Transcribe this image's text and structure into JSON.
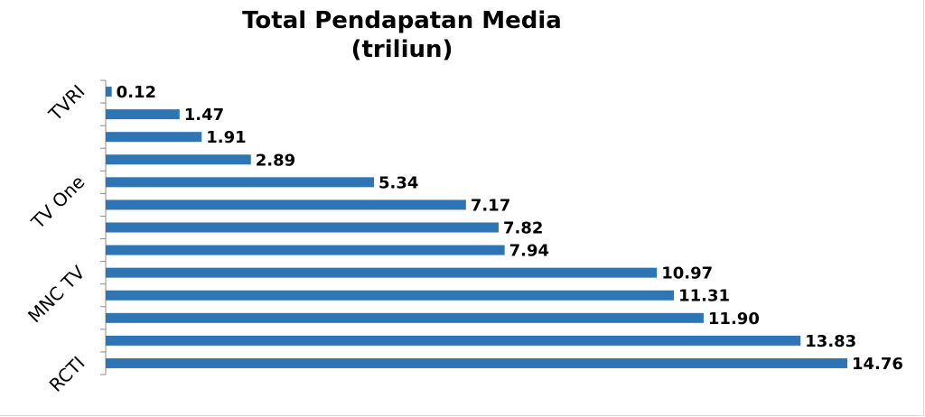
{
  "chart_data": {
    "type": "bar",
    "orientation": "horizontal",
    "title": "Total Pendapatan Media",
    "subtitle": "(triliun)",
    "xlabel": "",
    "ylabel": "",
    "categories": [
      "TVRI",
      "",
      "",
      "",
      "TV One",
      "",
      "",
      "",
      "MNC TV",
      "",
      "",
      "",
      "RCTI"
    ],
    "values": [
      0.12,
      1.47,
      1.91,
      2.89,
      5.34,
      7.17,
      7.82,
      7.94,
      10.97,
      11.31,
      11.9,
      13.83,
      14.76
    ],
    "value_labels": [
      "0.12",
      "1.47",
      "1.91",
      "2.89",
      "5.34",
      "7.17",
      "7.82",
      "7.94",
      "10.97",
      "11.31",
      "11.90",
      "13.83",
      "14.76"
    ],
    "xlim": [
      0,
      14.76
    ],
    "grid": false,
    "legend": "none",
    "bar_color": "#2e75b6"
  }
}
